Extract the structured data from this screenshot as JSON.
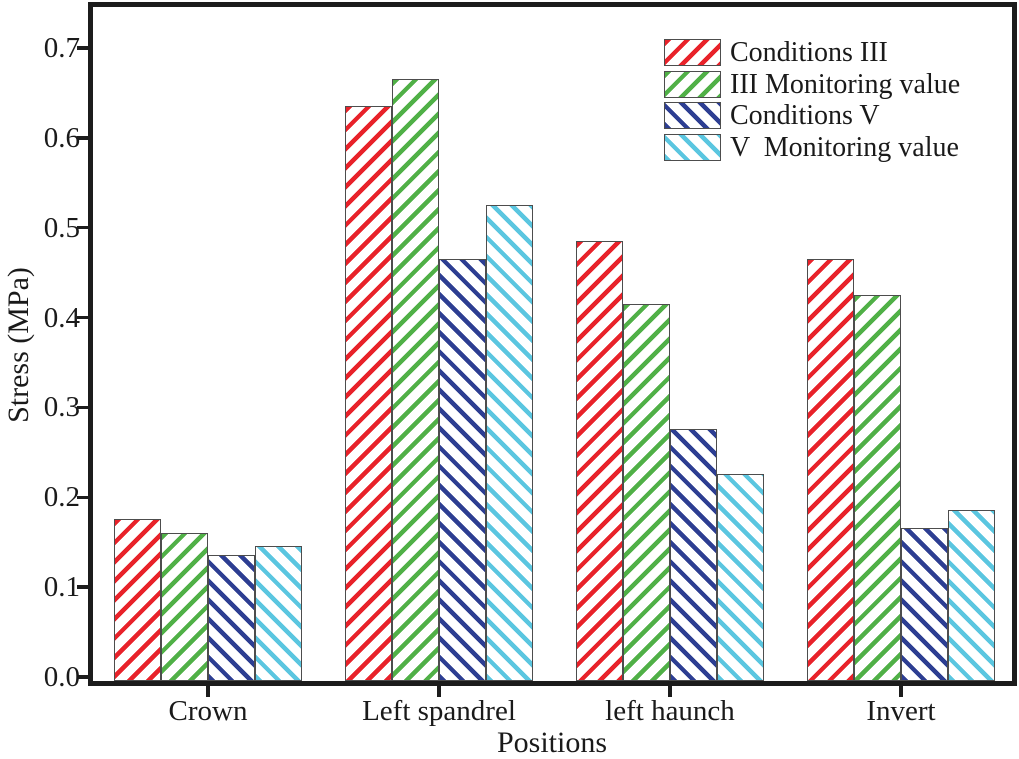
{
  "chart_data": {
    "type": "bar",
    "title": "",
    "xlabel": "Positions",
    "ylabel": "Stress (MPa)",
    "categories": [
      "Crown",
      "Left spandrel",
      "left haunch",
      "Invert"
    ],
    "series": [
      {
        "name": "Conditions III",
        "color": "#e8222a",
        "hatch": "/",
        "values": [
          0.18,
          0.64,
          0.49,
          0.47
        ]
      },
      {
        "name": "III Monitoring value",
        "color": "#50b047",
        "hatch": "/",
        "values": [
          0.165,
          0.67,
          0.42,
          0.43
        ]
      },
      {
        "name": "Conditions V",
        "color": "#2d3e92",
        "hatch": "\\",
        "values": [
          0.14,
          0.47,
          0.28,
          0.17
        ]
      },
      {
        "name": "V  Monitoring value",
        "color": "#5bc6e0",
        "hatch": "\\",
        "values": [
          0.15,
          0.53,
          0.23,
          0.19
        ]
      }
    ],
    "ylim": [
      0,
      0.75
    ],
    "yticks": [
      0.0,
      0.1,
      0.2,
      0.3,
      0.4,
      0.5,
      0.6,
      0.7
    ],
    "ytick_labels": [
      "0.0",
      "0.1",
      "0.2",
      "0.3",
      "0.4",
      "0.5",
      "0.6",
      "0.7"
    ],
    "legend_position": "top-right",
    "grid": false,
    "axis_color": "#1c1c1c",
    "bar_outline_color": "#4d4d4d",
    "background_color": "#ffffff"
  }
}
